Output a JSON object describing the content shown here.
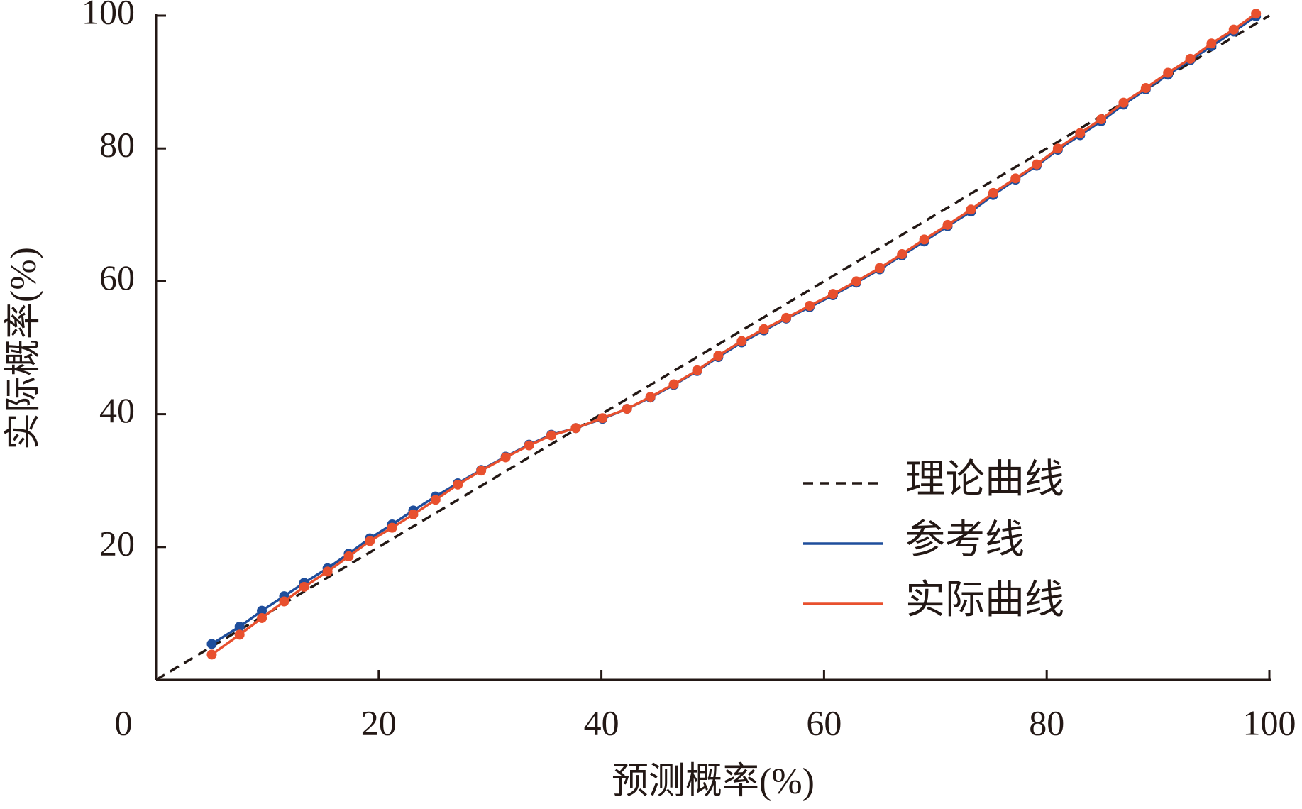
{
  "chart_data": {
    "type": "line",
    "xlabel": "预测概率(%)",
    "ylabel": "实际概率(%)",
    "xlim": [
      0,
      100
    ],
    "ylim": [
      0,
      100
    ],
    "xticks": [
      0,
      20,
      40,
      60,
      80,
      100
    ],
    "yticks": [
      20,
      40,
      60,
      80,
      100
    ],
    "legend": "lower right",
    "series": [
      {
        "name": "理论曲线",
        "color": "#231815",
        "dashed": true,
        "markers": false,
        "x": [
          0,
          100
        ],
        "values": [
          0,
          100
        ]
      },
      {
        "name": "参考线",
        "color": "#1f4e9c",
        "dashed": false,
        "markers": true,
        "x": [
          5.0,
          7.5,
          9.5,
          11.5,
          13.3,
          15.4,
          17.3,
          19.2,
          21.2,
          23.1,
          25.1,
          27.1,
          29.2,
          31.4,
          33.5,
          35.5,
          37.7,
          40.1,
          42.3,
          44.4,
          46.5,
          48.6,
          50.5,
          52.6,
          54.6,
          56.6,
          58.7,
          60.8,
          62.9,
          65.0,
          67.0,
          69.0,
          71.1,
          73.2,
          75.2,
          77.2,
          79.1,
          81.0,
          83.0,
          84.9,
          86.9,
          88.9,
          90.9,
          92.9,
          94.8,
          96.8,
          98.8
        ],
        "values": [
          5.4,
          8.0,
          10.4,
          12.6,
          14.6,
          16.8,
          19.0,
          21.3,
          23.4,
          25.5,
          27.6,
          29.6,
          31.6,
          33.6,
          35.4,
          36.9,
          37.9,
          39.3,
          40.8,
          42.5,
          44.4,
          46.5,
          48.6,
          50.8,
          52.6,
          54.4,
          56.1,
          57.9,
          59.8,
          61.8,
          63.9,
          66.0,
          68.3,
          70.5,
          73.0,
          75.3,
          77.4,
          79.8,
          82.0,
          84.1,
          86.6,
          88.9,
          91.1,
          93.3,
          95.4,
          97.6,
          99.9
        ]
      },
      {
        "name": "实际曲线",
        "color": "#e8502e",
        "dashed": false,
        "markers": true,
        "x": [
          5.0,
          7.5,
          9.5,
          11.5,
          13.3,
          15.4,
          17.3,
          19.2,
          21.2,
          23.1,
          25.1,
          27.1,
          29.2,
          31.4,
          33.5,
          35.5,
          37.7,
          40.1,
          42.3,
          44.4,
          46.5,
          48.6,
          50.5,
          52.6,
          54.6,
          56.6,
          58.7,
          60.8,
          62.9,
          65.0,
          67.0,
          69.0,
          71.1,
          73.2,
          75.2,
          77.2,
          79.1,
          81.0,
          83.0,
          84.9,
          86.9,
          88.9,
          90.9,
          92.9,
          94.8,
          96.8,
          98.8
        ],
        "values": [
          3.8,
          6.8,
          9.3,
          11.8,
          14.0,
          16.3,
          18.6,
          20.9,
          22.9,
          24.9,
          27.1,
          29.4,
          31.5,
          33.5,
          35.3,
          36.8,
          37.9,
          39.4,
          40.8,
          42.6,
          44.5,
          46.6,
          48.8,
          51.0,
          52.8,
          54.5,
          56.3,
          58.1,
          60.0,
          62.0,
          64.1,
          66.3,
          68.5,
          70.8,
          73.3,
          75.5,
          77.6,
          80.0,
          82.3,
          84.4,
          86.9,
          89.1,
          91.4,
          93.5,
          95.8,
          97.9,
          100.3
        ]
      }
    ]
  }
}
